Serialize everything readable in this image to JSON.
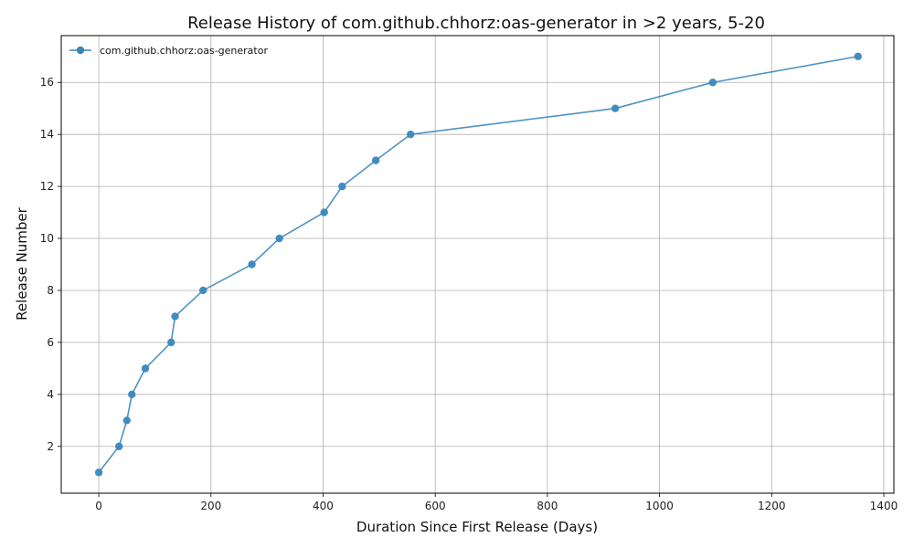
{
  "chart_data": {
    "type": "line",
    "title": "Release History of com.github.chhorz:oas-generator in >2 years, 5-20",
    "xlabel": "Duration Since First Release (Days)",
    "ylabel": "Release Number",
    "xlim": [
      -67,
      1418
    ],
    "ylim": [
      0.2,
      17.8
    ],
    "xticks": [
      0,
      200,
      400,
      600,
      800,
      1000,
      1200,
      1400
    ],
    "yticks": [
      2,
      4,
      6,
      8,
      10,
      12,
      14,
      16
    ],
    "grid": true,
    "legend_position": "top-left",
    "series": [
      {
        "name": "com.github.chhorz:oas-generator",
        "color": "#3a87bd",
        "marker": "circle",
        "points": [
          {
            "x": 0,
            "y": 1
          },
          {
            "x": 36,
            "y": 2
          },
          {
            "x": 50,
            "y": 3
          },
          {
            "x": 59,
            "y": 4
          },
          {
            "x": 83,
            "y": 5
          },
          {
            "x": 129,
            "y": 6
          },
          {
            "x": 136,
            "y": 7
          },
          {
            "x": 186,
            "y": 8
          },
          {
            "x": 273,
            "y": 9
          },
          {
            "x": 322,
            "y": 10
          },
          {
            "x": 402,
            "y": 11
          },
          {
            "x": 434,
            "y": 12
          },
          {
            "x": 494,
            "y": 13
          },
          {
            "x": 556,
            "y": 14
          },
          {
            "x": 921,
            "y": 15
          },
          {
            "x": 1095,
            "y": 16
          },
          {
            "x": 1354,
            "y": 17
          }
        ]
      }
    ]
  }
}
